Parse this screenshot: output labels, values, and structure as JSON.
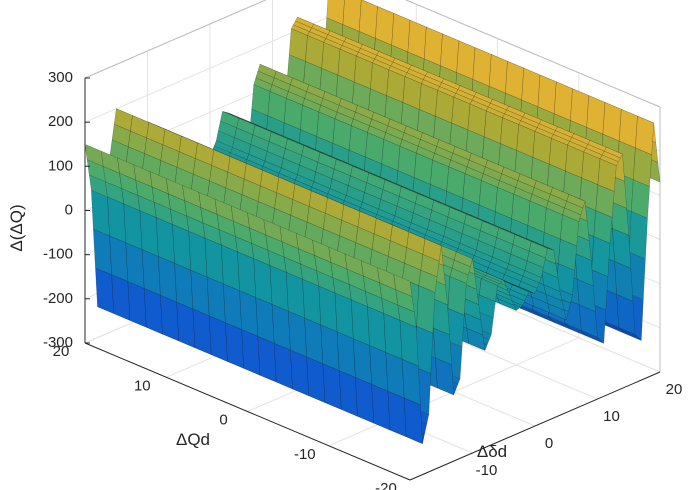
{
  "chart_data": {
    "type": "surface",
    "title": "",
    "xlabel": "ΔQd",
    "ylabel": "Δδd",
    "zlabel": "Δ(ΔQ)",
    "xlim": [
      -20,
      20
    ],
    "ylim": [
      -20,
      20
    ],
    "zlim": [
      -300,
      300
    ],
    "x_ticks": [
      -20,
      -10,
      0,
      10,
      20
    ],
    "y_ticks": [
      -20,
      -10,
      0,
      10,
      20
    ],
    "z_ticks": [
      -300,
      -200,
      -100,
      0,
      100,
      200,
      300
    ],
    "grid": true,
    "colormap": "parula",
    "surface_profile": {
      "description_axis": "Δδd",
      "y": [
        -20,
        -19,
        -18,
        -17,
        -16,
        -15,
        -14,
        -13,
        -12,
        -11,
        -10,
        -9,
        -8,
        -7,
        -6,
        -5,
        -4,
        -3,
        -2,
        -1,
        0,
        1,
        2,
        3,
        4,
        5,
        6,
        7,
        8,
        9,
        10,
        11,
        12,
        13,
        14,
        15,
        16,
        17,
        18,
        19,
        20
      ],
      "z": [
        150,
        40,
        -230,
        -170,
        100,
        200,
        60,
        -150,
        -120,
        90,
        140,
        30,
        -80,
        -50,
        55,
        60,
        20,
        -20,
        -15,
        10,
        0,
        30,
        90,
        80,
        -20,
        -90,
        -40,
        120,
        160,
        20,
        -160,
        -180,
        40,
        210,
        230,
        40,
        -190,
        -210,
        60,
        270,
        130
      ]
    }
  }
}
